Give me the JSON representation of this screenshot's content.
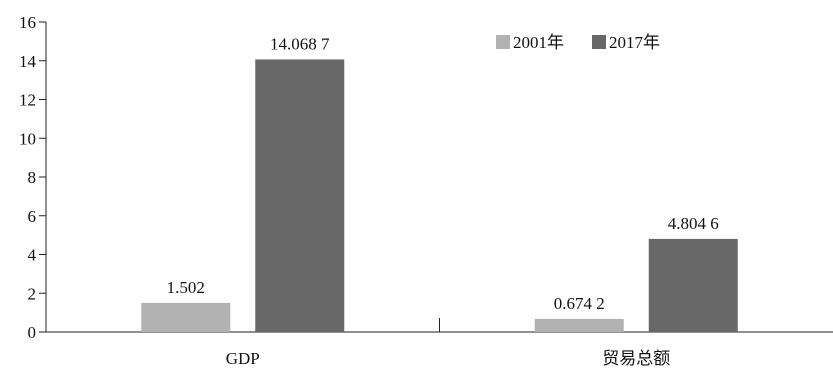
{
  "chart_data": {
    "type": "bar",
    "title": "",
    "xlabel": "",
    "ylabel": "",
    "categories": [
      "GDP",
      "贸易总额"
    ],
    "series": [
      {
        "name": "2001年",
        "color": "#b2b2b2",
        "values": [
          1.502,
          0.6742
        ],
        "labels": [
          "1.502",
          "0.674 2"
        ]
      },
      {
        "name": "2017年",
        "color": "#686868",
        "values": [
          14.0687,
          4.8046
        ],
        "labels": [
          "14.068 7",
          "4.804 6"
        ]
      }
    ],
    "ylim": [
      0,
      16
    ],
    "yticks": [
      "0",
      "2",
      "4",
      "6",
      "8",
      "10",
      "12",
      "14",
      "16"
    ],
    "grid": false,
    "legend_position": "top-right"
  }
}
